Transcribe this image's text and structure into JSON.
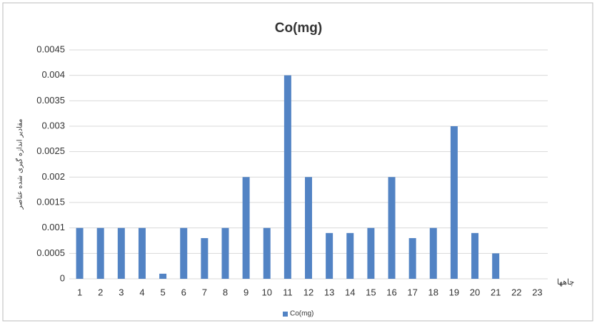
{
  "chart_data": {
    "type": "bar",
    "title": "Co(mg)",
    "y_label": "مقادیر اندازه گیری شده عناصر",
    "x_label": "چاهها",
    "categories": [
      "1",
      "2",
      "3",
      "4",
      "5",
      "6",
      "7",
      "8",
      "9",
      "10",
      "11",
      "12",
      "13",
      "14",
      "15",
      "16",
      "17",
      "18",
      "19",
      "20",
      "21",
      "22",
      "23"
    ],
    "series": [
      {
        "name": "Co(mg)",
        "color": "#5283c4",
        "values": [
          0.001,
          0.001,
          0.001,
          0.001,
          0.0001,
          0.001,
          0.0008,
          0.001,
          0.002,
          0.001,
          0.004,
          0.002,
          0.0009,
          0.0009,
          0.001,
          0.002,
          0.0008,
          0.001,
          0.003,
          0.0009,
          0.0005,
          0,
          0
        ]
      }
    ],
    "ylim": [
      0,
      0.0045
    ],
    "yticks": [
      0,
      0.0005,
      0.001,
      0.0015,
      0.002,
      0.0025,
      0.003,
      0.0035,
      0.004,
      0.0045
    ],
    "grid": true,
    "legend": "bottom"
  }
}
